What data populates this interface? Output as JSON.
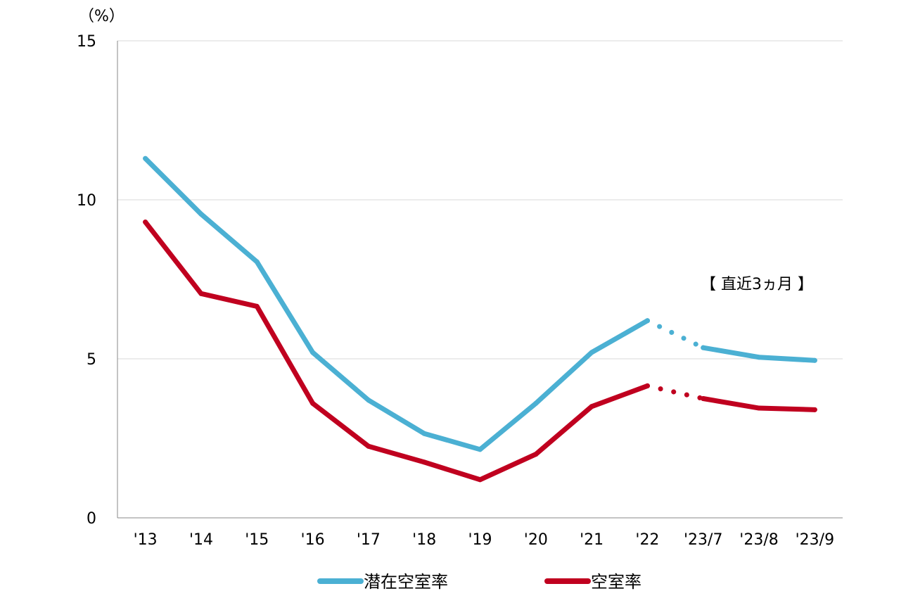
{
  "chart_data": {
    "type": "line",
    "unit": "（%）",
    "annotation": "【 直近3ヵ月 】",
    "categories": [
      "'13",
      "'14",
      "'15",
      "'16",
      "'17",
      "'18",
      "'19",
      "'20",
      "'21",
      "'22",
      "'23/7",
      "'23/8",
      "'23/9"
    ],
    "ylim": [
      0,
      15
    ],
    "yticks": [
      0,
      5,
      10,
      15
    ],
    "grid": true,
    "legend_position": "bottom",
    "dotted_gap_after_index": 9,
    "series": [
      {
        "name": "潜在空室率",
        "color": "#4bb0d3",
        "values": [
          11.3,
          9.55,
          8.05,
          5.2,
          3.7,
          2.65,
          2.15,
          3.6,
          5.2,
          6.2,
          5.35,
          5.05,
          4.95
        ]
      },
      {
        "name": "空室率",
        "color": "#c0001f",
        "values": [
          9.3,
          7.05,
          6.65,
          3.6,
          2.25,
          1.75,
          1.2,
          2.0,
          3.5,
          4.15,
          3.75,
          3.45,
          3.4
        ]
      }
    ]
  }
}
